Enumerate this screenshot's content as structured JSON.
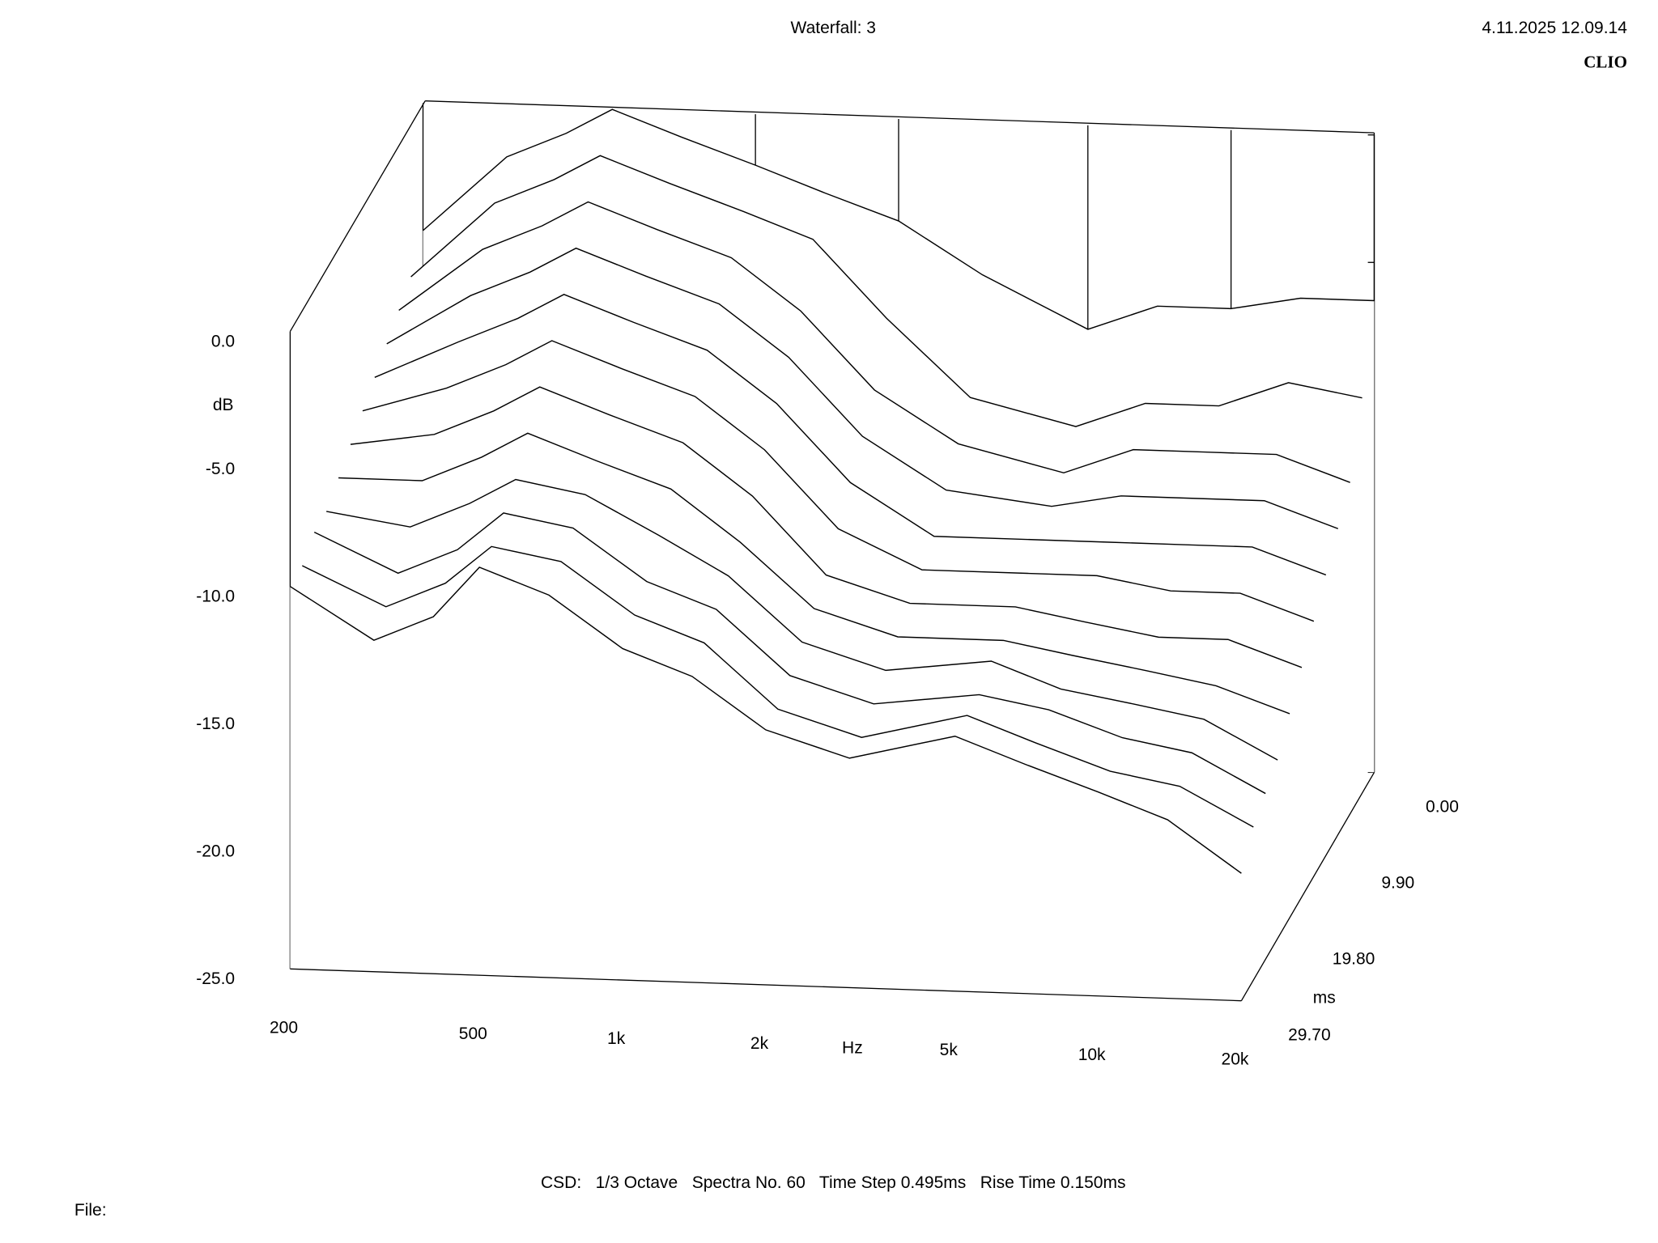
{
  "chart_data": {
    "type": "waterfall",
    "title": "Waterfall: 3",
    "timestamp": "4.11.2025 12.09.14",
    "brand": "CLIO",
    "footer": "CSD:   1/3 Octave   Spectra No. 60   Time Step 0.495ms   Rise Time 0.150ms",
    "file_label": "File:",
    "x_label": "Hz",
    "y_label": "dB",
    "z_label": "ms",
    "x_log": true,
    "xlim": [
      200,
      20000
    ],
    "xticks": [
      200,
      500,
      {
        "value": 1000,
        "label": "1k"
      },
      {
        "value": 2000,
        "label": "2k"
      },
      {
        "value": 5000,
        "label": "5k"
      },
      {
        "value": 10000,
        "label": "10k"
      },
      {
        "value": 20000,
        "label": "20k"
      }
    ],
    "ylim": [
      -25,
      0
    ],
    "yticks": [
      {
        "value": 0,
        "label": "0.0"
      },
      {
        "value": -5,
        "label": "-5.0"
      },
      {
        "value": -10,
        "label": "-10.0"
      },
      {
        "value": -15,
        "label": "-15.0"
      },
      {
        "value": -20,
        "label": "-20.0"
      },
      {
        "value": -25,
        "label": "-25.0"
      }
    ],
    "zlim": [
      0,
      29.7
    ],
    "zticks": [
      {
        "value": 0,
        "label": "0.00"
      },
      {
        "value": 9.9,
        "label": "9.90"
      },
      {
        "value": 19.8,
        "label": "19.80"
      },
      {
        "value": 29.7,
        "label": "29.70"
      }
    ],
    "color": "#000000",
    "x": [
      200,
      300,
      400,
      500,
      700,
      1000,
      1400,
      2000,
      3000,
      5000,
      7000,
      10000,
      14000,
      20000
    ],
    "slices": [
      {
        "t": 0,
        "values": [
          -5,
          -2,
          -1,
          0,
          -1,
          -2,
          -3,
          -4,
          -6,
          -8,
          -7,
          -7,
          -6.5,
          -6.5
        ]
      },
      {
        "t": 2.7,
        "values": [
          -6,
          -3,
          -2,
          -1,
          -2,
          -3,
          -4,
          -7,
          -10,
          -11,
          -10,
          -10,
          -9,
          -9.5
        ]
      },
      {
        "t": 5.4,
        "values": [
          -6.5,
          -4,
          -3,
          -2,
          -3,
          -4,
          -6,
          -9,
          -11,
          -12,
          -11,
          -11,
          -11,
          -12
        ]
      },
      {
        "t": 8.1,
        "values": [
          -7,
          -5,
          -4,
          -3,
          -4,
          -5,
          -7,
          -10,
          -12,
          -12.5,
          -12,
          -12,
          -12,
          -13
        ]
      },
      {
        "t": 10.8,
        "values": [
          -7.5,
          -6,
          -5,
          -4,
          -5,
          -6,
          -8,
          -11,
          -13,
          -13,
          -13,
          -13,
          -13,
          -14
        ]
      },
      {
        "t": 13.5,
        "values": [
          -8,
          -7,
          -6,
          -5,
          -6,
          -7,
          -9,
          -12,
          -13.5,
          -13.5,
          -13.5,
          -14,
          -14,
          -15
        ]
      },
      {
        "t": 16.2,
        "values": [
          -8.5,
          -8,
          -7,
          -6,
          -7,
          -8,
          -10,
          -13,
          -14,
          -14,
          -14.5,
          -15,
          -15,
          -16
        ]
      },
      {
        "t": 18.9,
        "values": [
          -9,
          -9,
          -8,
          -7,
          -8,
          -9,
          -11,
          -13.5,
          -14.5,
          -14.5,
          -15,
          -15.5,
          -16,
          -17
        ]
      },
      {
        "t": 21.6,
        "values": [
          -9.5,
          -10,
          -9,
          -8,
          -8.5,
          -10,
          -11.5,
          -14,
          -15,
          -14.5,
          -15.5,
          -16,
          -16.5,
          -18
        ]
      },
      {
        "t": 24.3,
        "values": [
          -9.5,
          -11,
          -10,
          -8.5,
          -9,
          -11,
          -12,
          -14.5,
          -15.5,
          -15,
          -15.5,
          -16.5,
          -17,
          -18.5
        ]
      },
      {
        "t": 27,
        "values": [
          -10,
          -11.5,
          -10.5,
          -9,
          -9.5,
          -11.5,
          -12.5,
          -15,
          -16,
          -15,
          -16,
          -17,
          -17.5,
          -19
        ]
      },
      {
        "t": 29.7,
        "values": [
          -10,
          -12,
          -11,
          -9,
          -10,
          -12,
          -13,
          -15,
          -16,
          -15,
          -16,
          -17,
          -18,
          -20
        ]
      }
    ]
  }
}
